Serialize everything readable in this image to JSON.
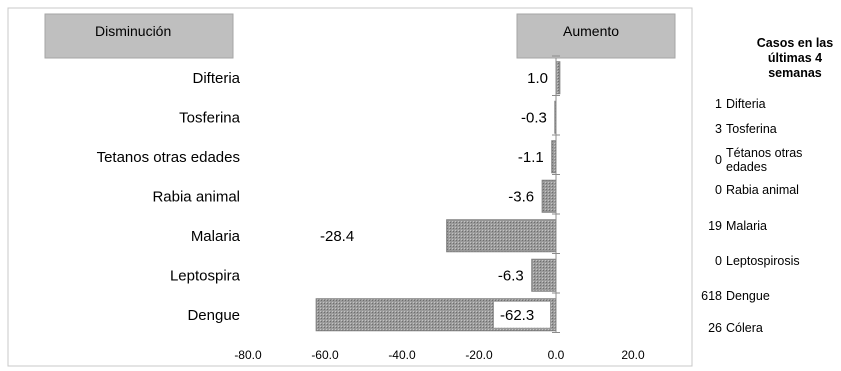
{
  "chart_data": {
    "type": "bar",
    "orientation": "horizontal",
    "header_left": "Disminución",
    "header_right": "Aumento",
    "categories": [
      "Difteria",
      "Tosferina",
      "Tetanos otras edades",
      "Rabia animal",
      "Malaria",
      "Leptospira",
      "Dengue"
    ],
    "values": [
      1.0,
      -0.3,
      -1.1,
      -3.6,
      -28.4,
      -6.3,
      -62.3
    ],
    "value_labels": [
      "1.0",
      "-0.3",
      "-1.1",
      "-3.6",
      "-28.4",
      "-6.3",
      "-62.3"
    ],
    "xlim": [
      -80,
      20
    ],
    "xticks": [
      -80,
      -60,
      -40,
      -20,
      0,
      20
    ],
    "xtick_labels": [
      "-80.0",
      "-60.0",
      "-40.0",
      "-20.0",
      "0.0",
      "20.0"
    ],
    "bar_color": "#7f7f7f"
  },
  "side_table": {
    "title": "Casos en las últimas 4 semanas",
    "rows": [
      {
        "count": "1",
        "name": "Difteria"
      },
      {
        "count": "3",
        "name": "Tosferina"
      },
      {
        "count": "0",
        "name": "Tétanos otras edades"
      },
      {
        "count": "0",
        "name": "Rabia animal"
      },
      {
        "count": "19",
        "name": "Malaria"
      },
      {
        "count": "0",
        "name": "Leptospirosis"
      },
      {
        "count": "618",
        "name": "Dengue"
      },
      {
        "count": "26",
        "name": "Cólera"
      }
    ]
  }
}
